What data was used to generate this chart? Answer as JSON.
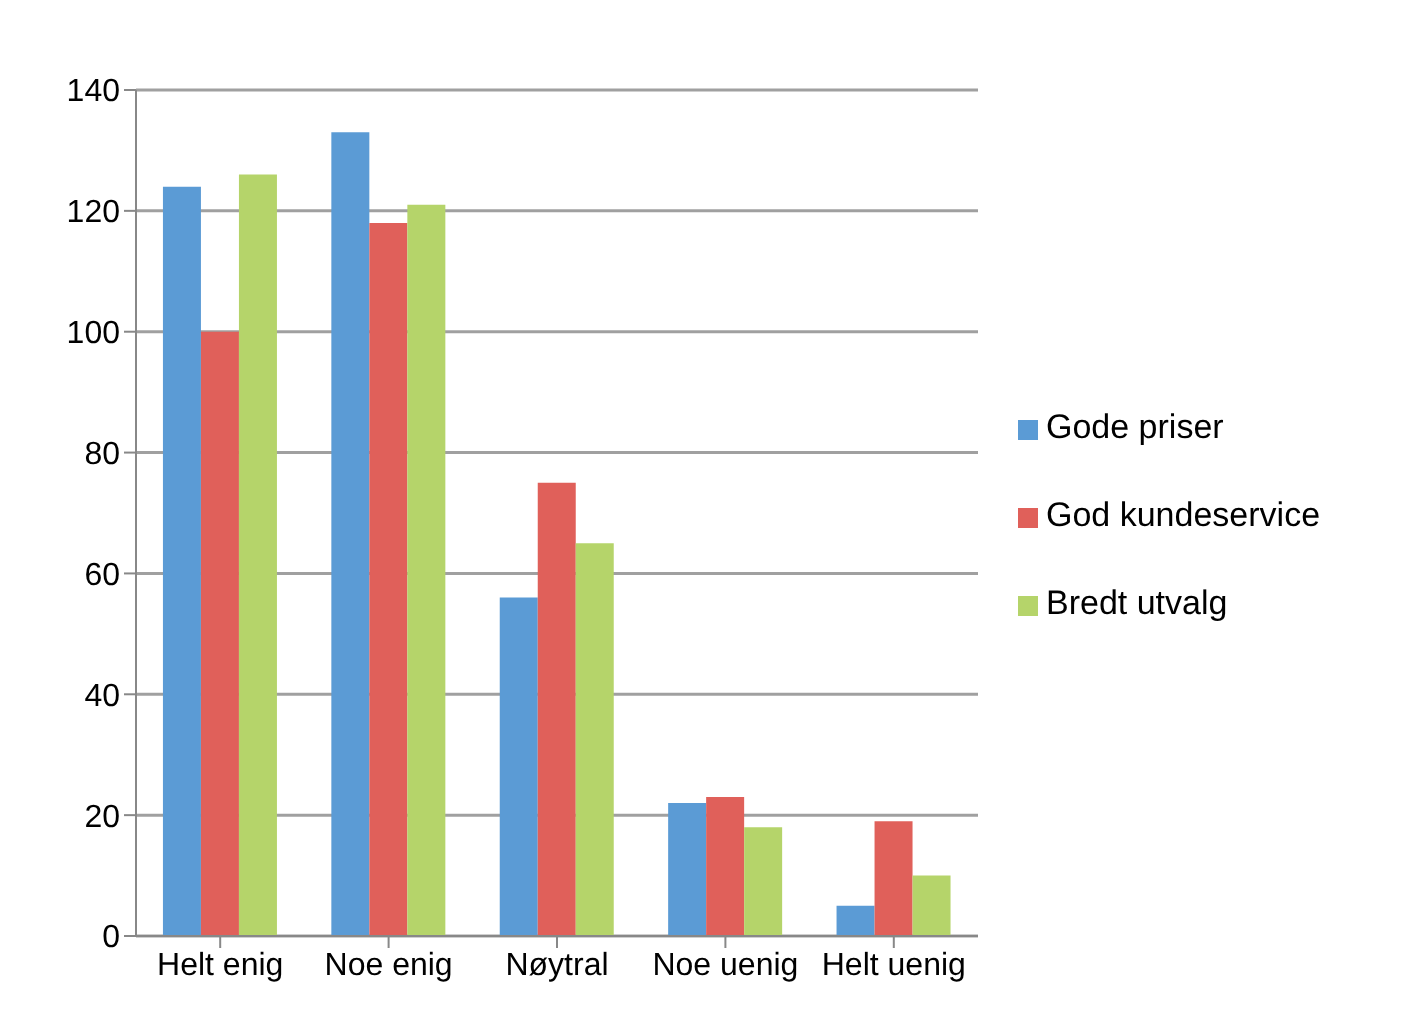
{
  "chart_data": {
    "type": "bar",
    "categories": [
      "Helt enig",
      "Noe enig",
      "Nøytral",
      "Noe uenig",
      "Helt uenig"
    ],
    "series": [
      {
        "name": "Gode priser",
        "color": "#5b9bd5",
        "values": [
          124,
          133,
          56,
          22,
          5
        ]
      },
      {
        "name": "God kundeservice",
        "color": "#e0605a",
        "values": [
          100,
          118,
          75,
          23,
          19
        ]
      },
      {
        "name": "Bredt utvalg",
        "color": "#b5d46a",
        "values": [
          126,
          121,
          65,
          18,
          10
        ]
      }
    ],
    "ylim": [
      0,
      140
    ],
    "yticks": [
      0,
      20,
      40,
      60,
      80,
      100,
      120,
      140
    ],
    "grid": "y",
    "legend": "right"
  }
}
